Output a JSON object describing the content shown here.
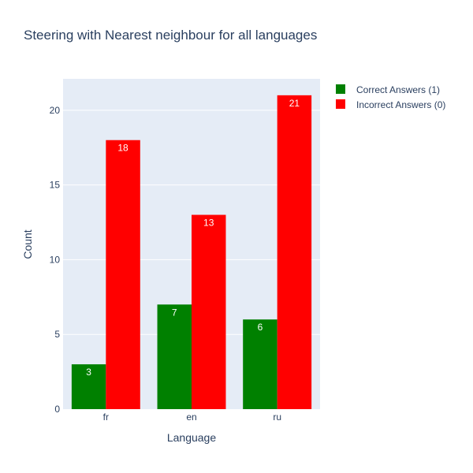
{
  "chart_data": {
    "type": "bar",
    "title": "Steering with Nearest neighbour for all languages",
    "xlabel": "Language",
    "ylabel": "Count",
    "categories": [
      "fr",
      "en",
      "ru"
    ],
    "ylim": [
      0,
      22.1
    ],
    "yticks": [
      0,
      5,
      10,
      15,
      20
    ],
    "grid": true,
    "legend_position": "top-right",
    "plot_background": "#e5ecf6",
    "series": [
      {
        "name": "Correct Answers (1)",
        "color": "#008000",
        "values": [
          3,
          7,
          6
        ]
      },
      {
        "name": "Incorrect Answers (0)",
        "color": "#ff0000",
        "values": [
          18,
          13,
          21
        ]
      }
    ]
  }
}
